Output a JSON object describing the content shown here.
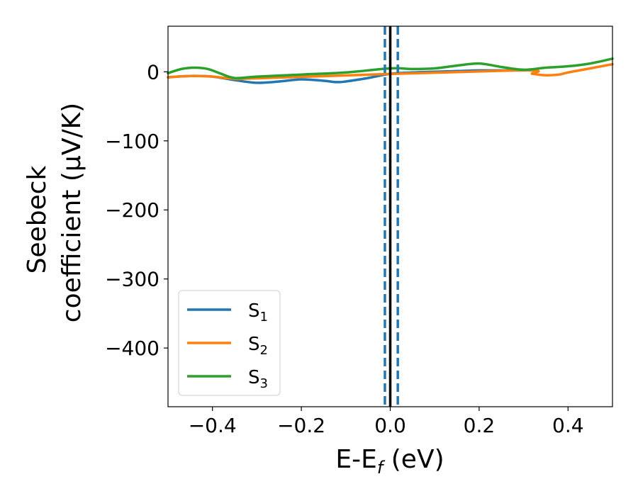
{
  "chart_data": {
    "type": "line",
    "xlabel": "E-E",
    "xlabel_sub": "f",
    "xlabel_unit": " (eV)",
    "ylabel_line1": "Seebeck",
    "ylabel_line2": "coefficient  (μV/K)",
    "xlim": [
      -0.5,
      0.5
    ],
    "ylim": [
      -485,
      66
    ],
    "x_ticks": [
      -0.4,
      -0.2,
      0.0,
      0.2,
      0.4
    ],
    "x_tick_labels": [
      "−0.4",
      "−0.2",
      "0.0",
      "0.2",
      "0.4"
    ],
    "y_ticks": [
      0,
      -100,
      -200,
      -300,
      -400
    ],
    "y_tick_labels": [
      "0",
      "−100",
      "−200",
      "−300",
      "−400"
    ],
    "grid": false,
    "legend_position": "bottom-left",
    "series": [
      {
        "name": "S",
        "sub": "1",
        "color": "#1f77b4",
        "x": [
          -0.5,
          -0.45,
          -0.4,
          -0.35,
          -0.3,
          -0.25,
          -0.2,
          -0.15,
          -0.12,
          -0.1,
          -0.05,
          0.0,
          0.05,
          0.1,
          0.15,
          0.2,
          0.25,
          0.28
        ],
        "y": [
          -8,
          -6,
          -7,
          -12,
          -16,
          -14,
          -11,
          -13,
          -15,
          -14,
          -9,
          -3,
          -1,
          0,
          1,
          2,
          2,
          2
        ]
      },
      {
        "name": "S",
        "sub": "2",
        "color": "#ff7f0e",
        "x": [
          -0.5,
          -0.45,
          -0.4,
          -0.35,
          -0.28,
          0.28,
          0.32,
          0.35,
          0.38,
          0.4,
          0.45,
          0.5
        ],
        "y": [
          -8,
          -6,
          -7,
          -10,
          -9,
          2,
          -3,
          -5,
          -4,
          -1,
          5,
          11
        ]
      },
      {
        "name": "S",
        "sub": "3",
        "color": "#2ca02c",
        "x": [
          -0.5,
          -0.47,
          -0.44,
          -0.41,
          -0.38,
          -0.35,
          -0.3,
          -0.2,
          -0.1,
          0.0,
          0.05,
          0.1,
          0.15,
          0.2,
          0.25,
          0.3,
          0.35,
          0.4,
          0.45,
          0.5
        ],
        "y": [
          -2,
          4,
          6,
          4,
          -3,
          -9,
          -7,
          -4,
          -1,
          5,
          4,
          5,
          9,
          12,
          7,
          3,
          6,
          8,
          12,
          19
        ]
      }
    ],
    "vlines": [
      {
        "x": 0.0,
        "color": "#000000",
        "style": "solid"
      },
      {
        "x": -0.012,
        "color": "#1f77b4",
        "style": "dashed"
      },
      {
        "x": 0.017,
        "color": "#1f77b4",
        "style": "dashed"
      }
    ]
  }
}
